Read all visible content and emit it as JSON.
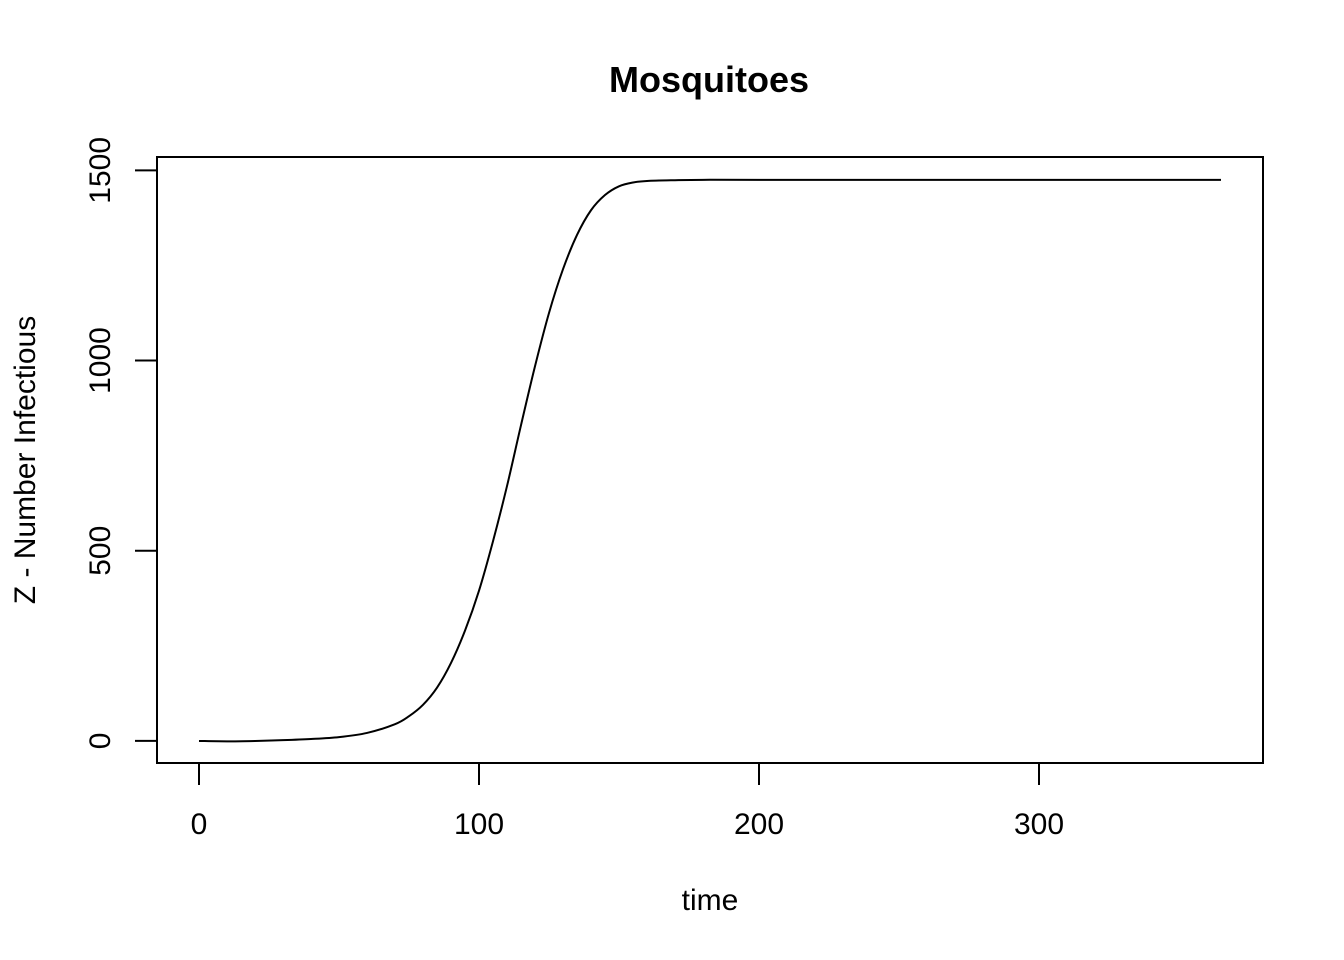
{
  "chart_data": {
    "type": "line",
    "title": "Mosquitoes",
    "xlabel": "time",
    "ylabel": "Z - Number Infectious",
    "xlim": [
      -15,
      380
    ],
    "ylim": [
      -58,
      1535
    ],
    "x_ticks": [
      0,
      100,
      200,
      300
    ],
    "y_ticks": [
      0,
      500,
      1000,
      1500
    ],
    "x_tick_labels": [
      "0",
      "100",
      "200",
      "300"
    ],
    "y_tick_labels": [
      "0",
      "500",
      "1000",
      "1500"
    ],
    "grid": false,
    "legend": "none",
    "line_color": "#000000",
    "series": [
      {
        "x": [
          0,
          10,
          20,
          30,
          40,
          50,
          60,
          70,
          75,
          80,
          85,
          90,
          95,
          100,
          105,
          110,
          115,
          120,
          125,
          130,
          135,
          140,
          145,
          150,
          155,
          160,
          170,
          180,
          200,
          250,
          300,
          365
        ],
        "values": [
          0,
          -1,
          0,
          2,
          5,
          10,
          21,
          44,
          65,
          95,
          140,
          205,
          290,
          395,
          525,
          670,
          830,
          985,
          1125,
          1240,
          1330,
          1395,
          1435,
          1458,
          1468,
          1472,
          1474,
          1475,
          1475,
          1475,
          1475,
          1475
        ]
      }
    ]
  }
}
